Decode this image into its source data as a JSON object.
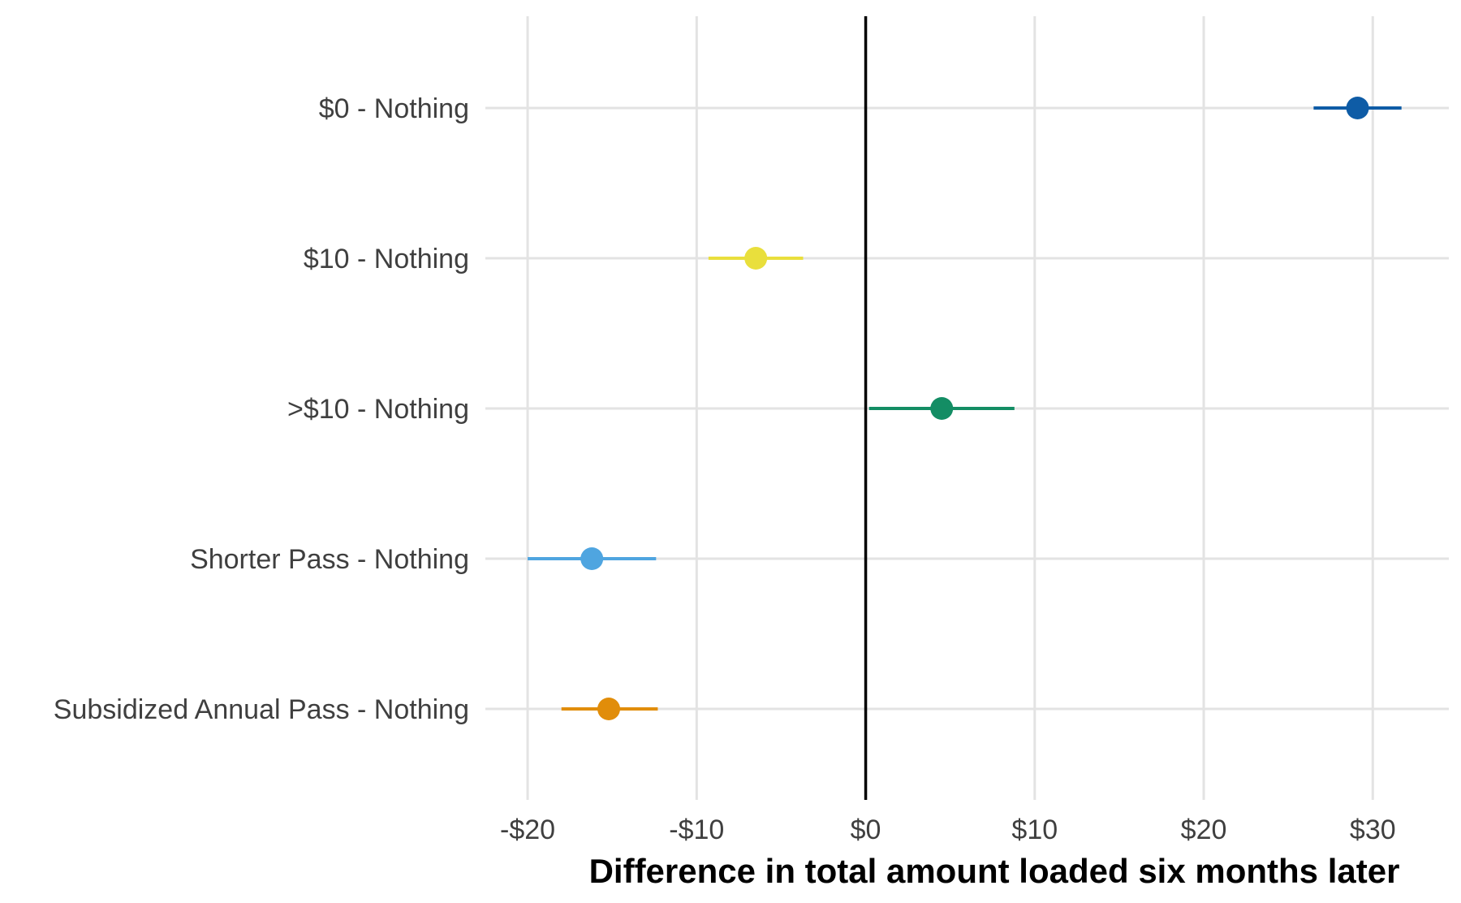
{
  "chart_data": {
    "type": "scatter",
    "subtype": "point-range",
    "orientation": "horizontal",
    "xlabel": "Difference in total amount loaded six months later",
    "ylabel": "",
    "xlim": [
      -22.5,
      34.5
    ],
    "x_ticks": [
      -20,
      -10,
      0,
      10,
      20,
      30
    ],
    "x_tick_labels": [
      "-$20",
      "-$10",
      "$0",
      "$10",
      "$20",
      "$30"
    ],
    "reference_line_x": 0,
    "grid": true,
    "legend": "none",
    "categories": [
      "$0 - Nothing",
      "$10 - Nothing",
      ">$10 - Nothing",
      "Shorter Pass - Nothing",
      "Subsidized Annual Pass - Nothing"
    ],
    "estimates": [
      29.1,
      -6.5,
      4.5,
      -16.2,
      -15.2
    ],
    "lower": [
      26.5,
      -9.3,
      0.2,
      -20.0,
      -18.0
    ],
    "upper": [
      31.7,
      -3.7,
      8.8,
      -12.4,
      -12.3
    ],
    "colors": [
      "#0e5ca6",
      "#e9df3c",
      "#138d64",
      "#4fa5e0",
      "#e18d0a"
    ]
  }
}
